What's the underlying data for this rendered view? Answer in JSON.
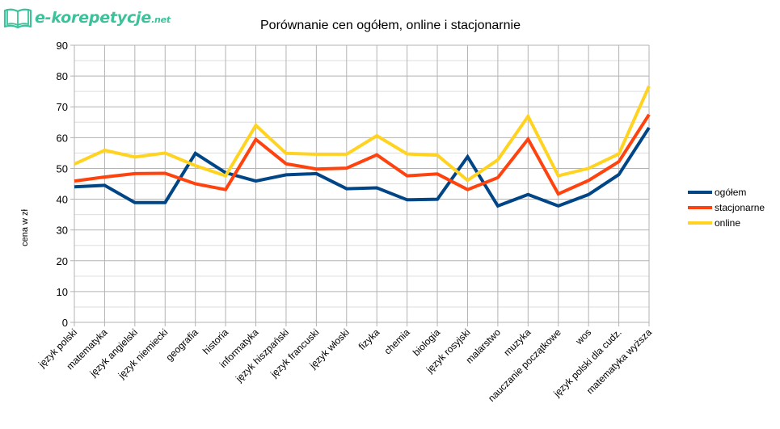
{
  "logo": {
    "icon": "open-book-icon",
    "text_main": "e-korepetycje",
    "text_suffix": ".net",
    "color": "#3cc29a"
  },
  "chart_data": {
    "type": "line",
    "title": "Porównanie cen ogółem, online i stacjonarnie",
    "xlabel": "",
    "ylabel": "cena w zł",
    "ylim": [
      0,
      90
    ],
    "yticks": [
      0,
      10,
      20,
      30,
      40,
      50,
      60,
      70,
      80,
      90
    ],
    "grid": true,
    "minor_grid_step": 5,
    "legend_position": "right",
    "categories": [
      "język polski",
      "matematyka",
      "język angielski",
      "język niemiecki",
      "geografia",
      "historia",
      "informatyka",
      "język hiszpański",
      "język francuski",
      "język włoski",
      "fizyka",
      "chemia",
      "biologia",
      "język rosyjski",
      "malarstwo",
      "muzyka",
      "nauczanie początkowe",
      "wos",
      "język polski dla cudz.",
      "matematyka wyższa"
    ],
    "series": [
      {
        "name": "ogółem",
        "color": "#004586",
        "values": [
          44.0,
          44.5,
          38.9,
          38.9,
          54.9,
          48.6,
          45.9,
          47.9,
          48.3,
          43.4,
          43.7,
          39.8,
          40.0,
          53.8,
          37.8,
          41.5,
          37.8,
          41.5,
          48.0,
          63.2
        ]
      },
      {
        "name": "stacjonarne",
        "color": "#ff420e",
        "values": [
          45.9,
          47.2,
          48.3,
          48.4,
          45.0,
          43.1,
          59.4,
          51.5,
          49.8,
          50.1,
          54.4,
          47.6,
          48.2,
          43.1,
          47.0,
          59.5,
          41.7,
          46.1,
          52.2,
          67.5
        ]
      },
      {
        "name": "online",
        "color": "#ffd320",
        "values": [
          51.4,
          55.9,
          53.7,
          55.0,
          50.9,
          47.6,
          64.0,
          54.9,
          54.6,
          54.6,
          60.6,
          54.7,
          54.3,
          46.1,
          52.8,
          66.9,
          47.6,
          50.0,
          54.7,
          76.7
        ]
      }
    ]
  }
}
